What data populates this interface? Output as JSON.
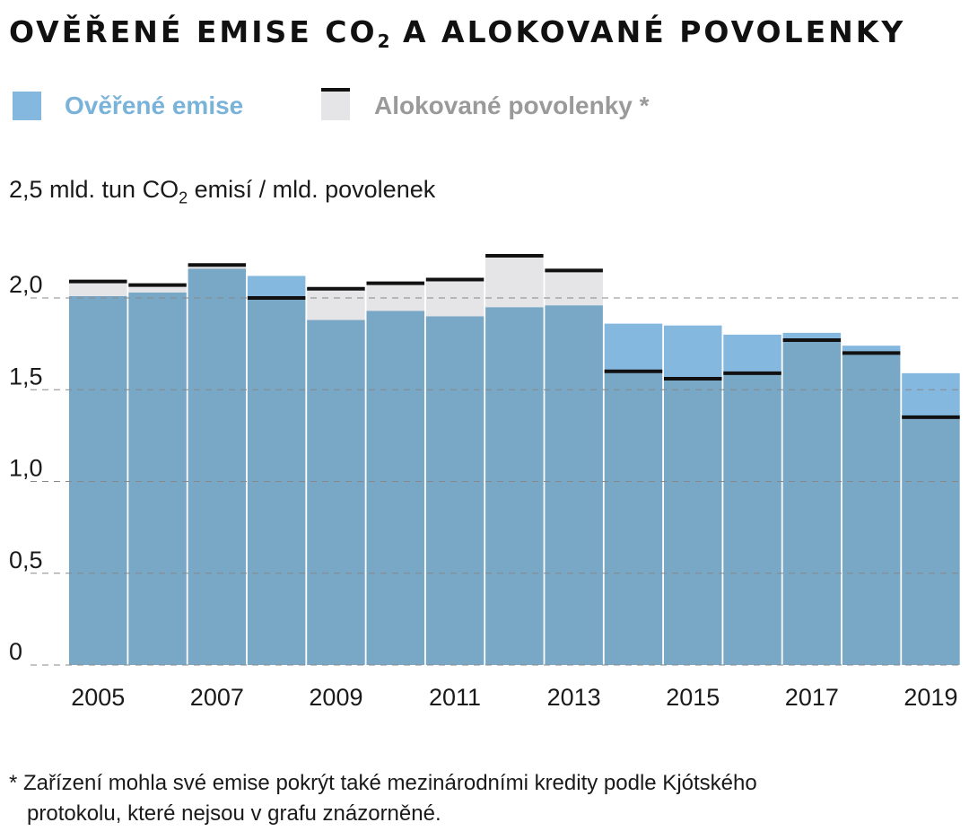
{
  "title": {
    "main": "OVĚŘENÉ EMISE CO",
    "sub": "2",
    "rest": " A ALOKOVANÉ POVOLENKY"
  },
  "legend": {
    "emissions_label": "Ověřené emise",
    "allowances_label": "Alokované povolenky *"
  },
  "unit_label": {
    "main": "2,5 mld. tun CO",
    "sub": "2",
    "rest": " emisí / mld. povolenek"
  },
  "footnote": {
    "line1": "* Zařízení mohla své emise pokrýt také mezinárodními kredity podle Kjótského",
    "line2": "protokolu, které nejsou v grafu znázorněné."
  },
  "colors": {
    "emissions_light": "#85b8df",
    "emissions_dark": "#79a7c6",
    "allowances_fill": "#e5e4e6",
    "allowance_line": "#111111",
    "grid": "#888888",
    "emissions_legend_text": "#7ab3da",
    "allowances_legend_text": "#9a9a9a"
  },
  "chart_data": {
    "type": "bar",
    "categories": [
      "2005",
      "2006",
      "2007",
      "2008",
      "2009",
      "2010",
      "2011",
      "2012",
      "2013",
      "2014",
      "2015",
      "2016",
      "2017",
      "2018",
      "2019"
    ],
    "series": [
      {
        "name": "Ověřené emise",
        "values": [
          2.01,
          2.03,
          2.16,
          2.12,
          1.88,
          1.93,
          1.9,
          1.95,
          1.96,
          1.86,
          1.85,
          1.8,
          1.81,
          1.74,
          1.59
        ]
      },
      {
        "name": "Alokované povolenky *",
        "values": [
          2.09,
          2.07,
          2.18,
          2.0,
          2.05,
          2.08,
          2.1,
          2.23,
          2.15,
          1.6,
          1.56,
          1.59,
          1.77,
          1.7,
          1.35
        ]
      }
    ],
    "x_tick_labels": [
      "2005",
      "2007",
      "2009",
      "2011",
      "2013",
      "2015",
      "2017",
      "2019"
    ],
    "y_ticks": [
      {
        "value": 0,
        "label": "0"
      },
      {
        "value": 0.5,
        "label": "0,5"
      },
      {
        "value": 1.0,
        "label": "1,0"
      },
      {
        "value": 1.5,
        "label": "1,5"
      },
      {
        "value": 2.0,
        "label": "2,0"
      }
    ],
    "ylim": [
      0,
      2.5
    ],
    "grid": true,
    "legend_position": "top-left"
  }
}
